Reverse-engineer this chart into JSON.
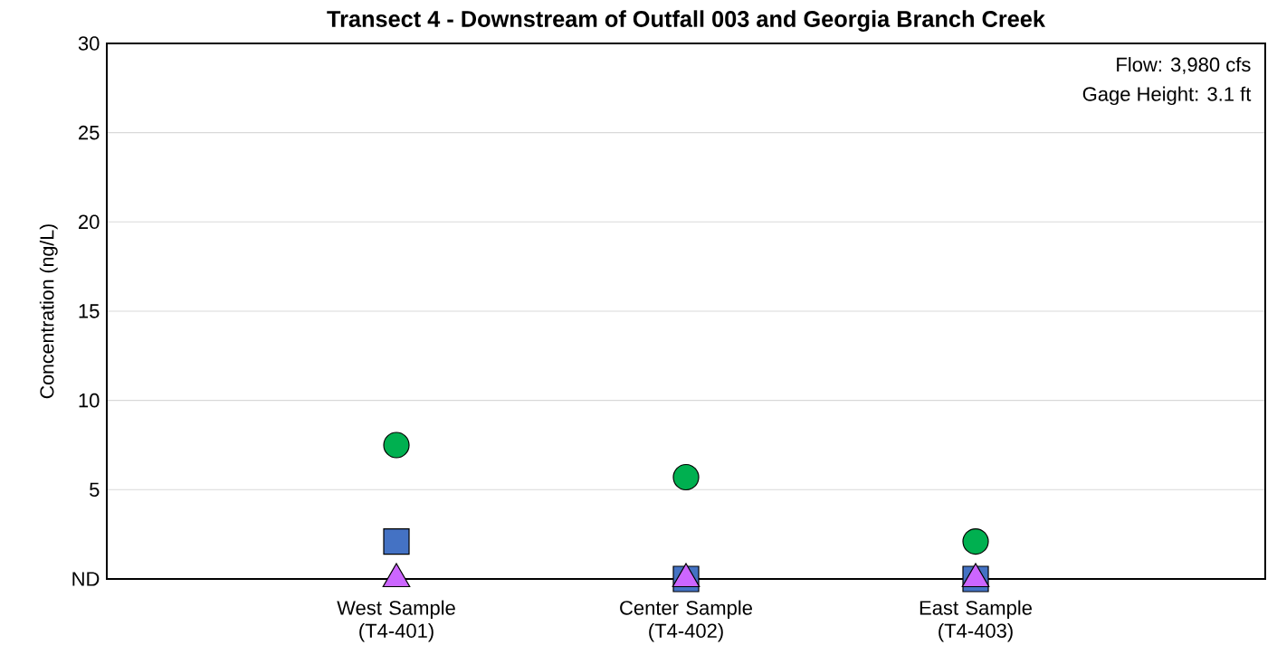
{
  "chart_data": {
    "type": "scatter",
    "title": "Transect 4 - Downstream of Outfall 003 and Georgia Branch Creek",
    "ylabel": "Concentration (ng/L)",
    "categories": [
      "West Sample (T4-401)",
      "Center Sample (T4-402)",
      "East Sample (T4-403)"
    ],
    "series": [
      {
        "color": "#00b050",
        "marker": "circle",
        "values": [
          7.5,
          5.7,
          2.1
        ]
      },
      {
        "color": "#4472c4",
        "marker": "square",
        "values": [
          2.1,
          0,
          0
        ]
      },
      {
        "color": "#cc66ff",
        "marker": "triangle",
        "values": [
          0,
          0,
          0
        ]
      }
    ],
    "ylim": [
      0,
      30
    ],
    "yticks": [
      {
        "value": 0,
        "label": "ND"
      },
      5,
      10,
      15,
      20,
      25,
      30
    ],
    "grid": "y",
    "annotations": [
      "Flow: 3,980 cfs",
      "Gage Height: 3.1 ft"
    ]
  }
}
